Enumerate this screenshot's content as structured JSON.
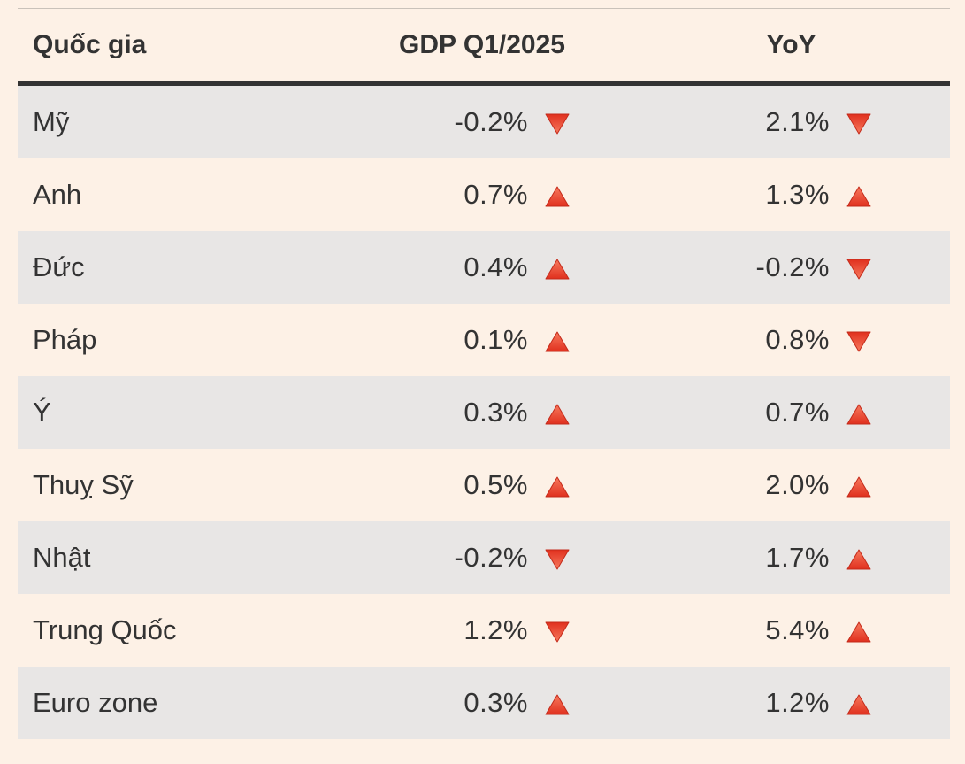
{
  "table": {
    "headers": {
      "country": "Quốc gia",
      "gdp": "GDP Q1/2025",
      "yoy": "YoY"
    },
    "rows": [
      {
        "country": "Mỹ",
        "gdp": "-0.2%",
        "gdp_trend": "down",
        "yoy": "2.1%",
        "yoy_trend": "down"
      },
      {
        "country": "Anh",
        "gdp": "0.7%",
        "gdp_trend": "up",
        "yoy": "1.3%",
        "yoy_trend": "up"
      },
      {
        "country": "Đức",
        "gdp": "0.4%",
        "gdp_trend": "up",
        "yoy": "-0.2%",
        "yoy_trend": "down"
      },
      {
        "country": "Pháp",
        "gdp": "0.1%",
        "gdp_trend": "up",
        "yoy": "0.8%",
        "yoy_trend": "down"
      },
      {
        "country": "Ý",
        "gdp": "0.3%",
        "gdp_trend": "up",
        "yoy": "0.7%",
        "yoy_trend": "up"
      },
      {
        "country": "Thuỵ Sỹ",
        "gdp": "0.5%",
        "gdp_trend": "up",
        "yoy": "2.0%",
        "yoy_trend": "up"
      },
      {
        "country": "Nhật",
        "gdp": "-0.2%",
        "gdp_trend": "down",
        "yoy": "1.7%",
        "yoy_trend": "up"
      },
      {
        "country": "Trung Quốc",
        "gdp": "1.2%",
        "gdp_trend": "down",
        "yoy": "5.4%",
        "yoy_trend": "up"
      },
      {
        "country": "Euro zone",
        "gdp": "0.3%",
        "gdp_trend": "up",
        "yoy": "1.2%",
        "yoy_trend": "up"
      }
    ]
  },
  "colors": {
    "background": "#fdf1e6",
    "row_shade": "#e8e6e5",
    "text": "#333333",
    "arrow_red": "#e0301e",
    "arrow_light": "#f77a5e"
  },
  "icons": {
    "up": "triangle-up-icon",
    "down": "triangle-down-icon"
  }
}
